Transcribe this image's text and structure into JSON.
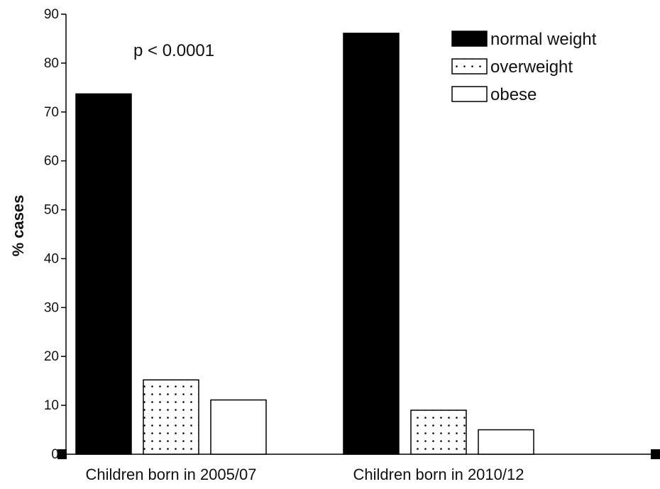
{
  "chart_data": {
    "type": "bar",
    "ylabel": "% cases",
    "xlabel": "",
    "ylim": [
      0,
      90
    ],
    "yticks": [
      0,
      10,
      20,
      30,
      40,
      50,
      60,
      70,
      80,
      90
    ],
    "categories": [
      "Children born in 2005/07",
      "Children born in 2010/12"
    ],
    "series": [
      {
        "name": "normal weight",
        "values": [
          73.7,
          86.1
        ],
        "fill": "solid",
        "color": "#000000"
      },
      {
        "name": "overweight",
        "values": [
          15.2,
          9.0
        ],
        "fill": "dotted",
        "color": "#ffffff"
      },
      {
        "name": "obese",
        "values": [
          11.1,
          5.0
        ],
        "fill": "empty",
        "color": "#ffffff"
      }
    ],
    "annotation": "p < 0.0001",
    "legend_position": "top-right",
    "grid": false
  }
}
